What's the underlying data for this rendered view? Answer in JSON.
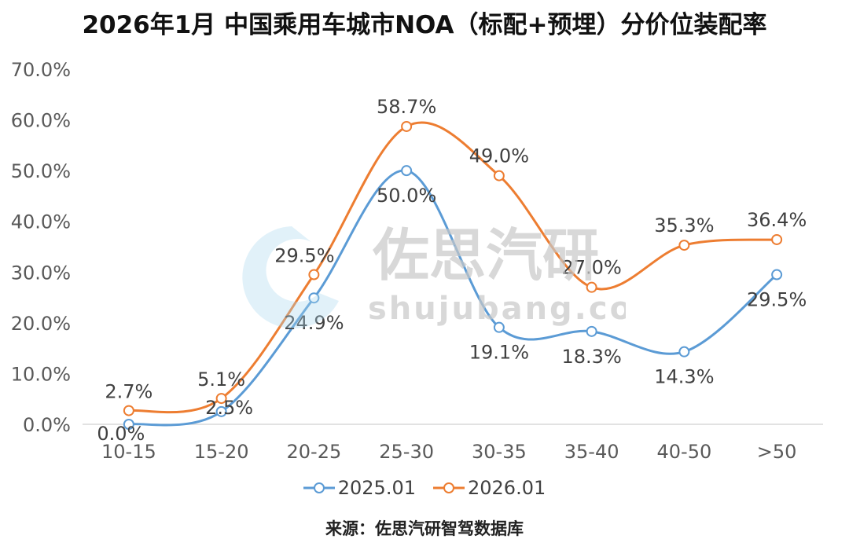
{
  "chart_data": {
    "type": "line",
    "title": "2026年1月 中国乘用车城市NOA（标配+预埋）分价位装配率",
    "categories": [
      "10-15",
      "15-20",
      "20-25",
      "25-30",
      "30-35",
      "35-40",
      "40-50",
      ">50"
    ],
    "series": [
      {
        "name": "2025.01",
        "color": "#5b9bd5",
        "values": [
          0.0,
          2.5,
          24.9,
          50.0,
          19.1,
          18.3,
          14.3,
          29.5
        ],
        "labels": [
          "0.0%",
          "2.5%",
          "24.9%",
          "50.0%",
          "19.1%",
          "18.3%",
          "14.3%",
          "29.5%"
        ]
      },
      {
        "name": "2026.01",
        "color": "#ed7d31",
        "values": [
          2.7,
          5.1,
          29.5,
          58.7,
          49.0,
          27.0,
          35.3,
          36.4
        ],
        "labels": [
          "2.7%",
          "5.1%",
          "29.5%",
          "58.7%",
          "49.0%",
          "27.0%",
          "35.3%",
          "36.4%"
        ]
      }
    ],
    "ylim": [
      0,
      70
    ],
    "yticks": [
      "0.0%",
      "10.0%",
      "20.0%",
      "30.0%",
      "40.0%",
      "50.0%",
      "60.0%",
      "70.0%"
    ],
    "grid": false,
    "legend_position": "bottom"
  },
  "source": "来源：佐思汽研智驾数据库",
  "watermark": {
    "brand": "佐思汽研",
    "url": "shujubang.com"
  }
}
